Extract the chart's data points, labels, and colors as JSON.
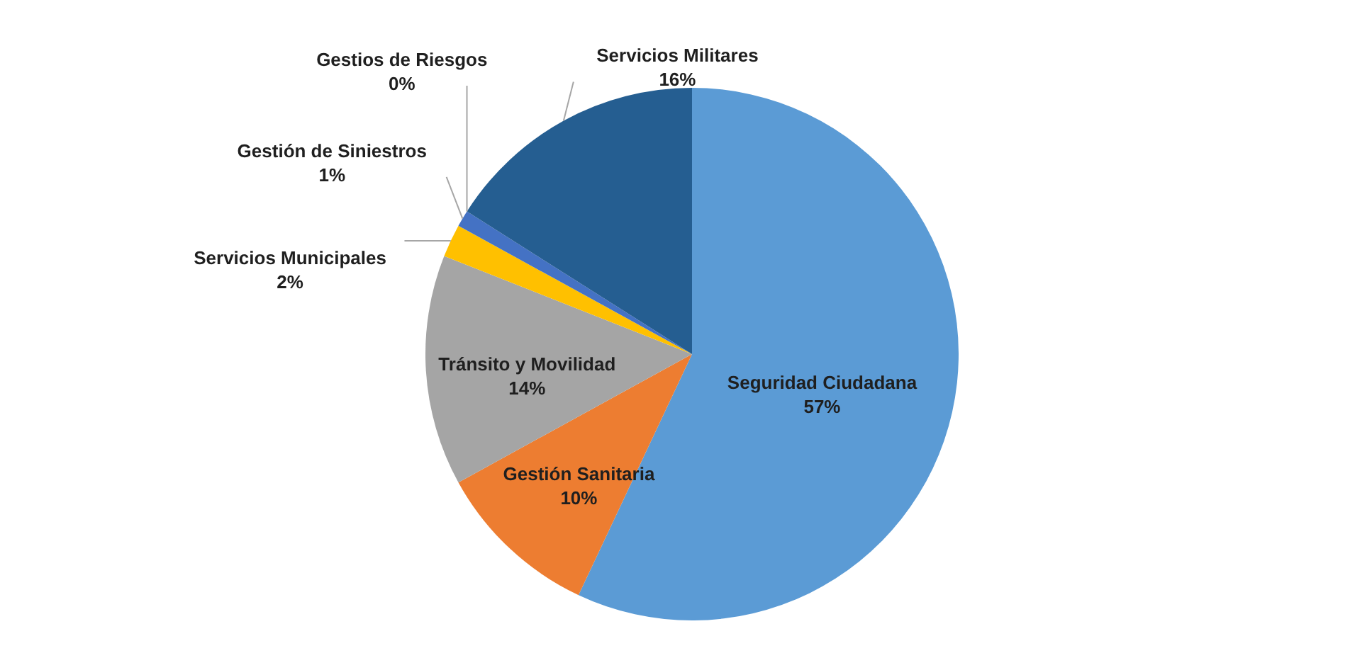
{
  "chart_data": {
    "type": "pie",
    "categories": [
      "Seguridad Ciudadana",
      "Gestión Sanitaria",
      "Tránsito y Movilidad",
      "Servicios Municipales",
      "Gestión de Siniestros",
      "Gestios de Riesgos",
      "Servicios Militares"
    ],
    "values": [
      57,
      10,
      14,
      2,
      1,
      0,
      16
    ],
    "value_labels": [
      "57%",
      "10%",
      "14%",
      "2%",
      "1%",
      "0%",
      "16%"
    ],
    "colors": [
      "#5b9bd5",
      "#ed7d31",
      "#a5a5a5",
      "#ffc000",
      "#4472c4",
      "#70ad47",
      "#255e91"
    ]
  }
}
